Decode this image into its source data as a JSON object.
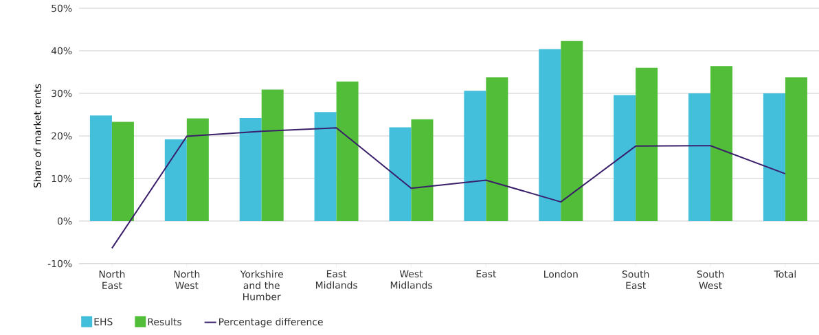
{
  "chart_data": {
    "type": "bar",
    "ylabel": "Share of market rents",
    "categories": [
      "North East",
      "North West",
      "Yorkshire and the Humber",
      "East Midlands",
      "West Midlands",
      "East",
      "London",
      "South East",
      "South West",
      "Total"
    ],
    "series": [
      {
        "name": "EHS",
        "color": "#43bfdb",
        "values": [
          24.8,
          19.2,
          24.2,
          25.6,
          22.0,
          30.6,
          40.4,
          29.6,
          30.0,
          30.0
        ]
      },
      {
        "name": "Results",
        "color": "#52bd38",
        "values": [
          23.3,
          24.1,
          30.9,
          32.8,
          23.9,
          33.8,
          42.3,
          36.0,
          36.4,
          33.8
        ]
      },
      {
        "name": "Percentage difference",
        "type": "line",
        "color": "#3a1f6b",
        "line_style": "solid",
        "marker": "none",
        "values": [
          -6.4,
          19.9,
          21.1,
          21.9,
          7.7,
          9.6,
          4.5,
          17.6,
          17.7,
          11.1
        ]
      }
    ],
    "ylim": [
      -10,
      50
    ],
    "yticks": [
      {
        "value": -10,
        "label": "-10%"
      },
      {
        "value": 0,
        "label": "0%"
      },
      {
        "value": 10,
        "label": "10%"
      },
      {
        "value": 20,
        "label": "20%"
      },
      {
        "value": 30,
        "label": "30%"
      },
      {
        "value": 40,
        "label": "40%"
      },
      {
        "value": 50,
        "label": "50%"
      }
    ],
    "grid": "y",
    "legend": "bottom"
  }
}
